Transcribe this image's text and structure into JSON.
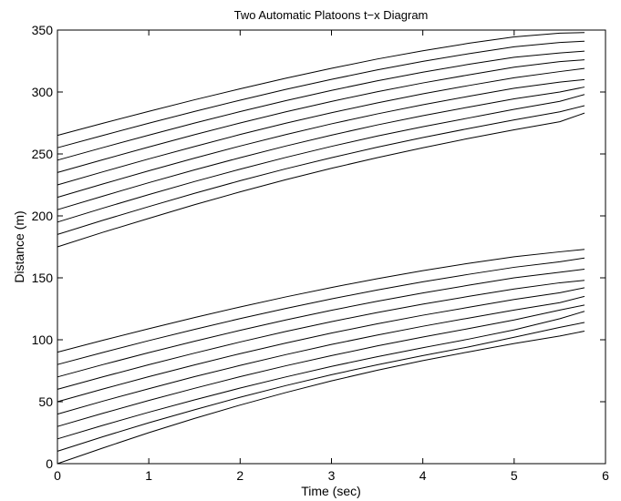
{
  "chart_data": {
    "type": "line",
    "title": "Two Automatic Platoons t−x Diagram",
    "xlabel": "Time (sec)",
    "ylabel": "Distance (m)",
    "xlim": [
      0,
      6
    ],
    "ylim": [
      0,
      350
    ],
    "xticks": [
      0,
      1,
      2,
      3,
      4,
      5,
      6
    ],
    "yticks": [
      0,
      50,
      100,
      150,
      200,
      250,
      300,
      350
    ],
    "grid": false,
    "legend": "none",
    "line_color": "#000000",
    "x": [
      0,
      0.5,
      1,
      1.5,
      2,
      2.5,
      3,
      3.5,
      4,
      4.5,
      5,
      5.5,
      5.77
    ],
    "series": [
      {
        "values": [
          0,
          12.7,
          25,
          36.5,
          47.3,
          57.4,
          66.8,
          75.4,
          83.2,
          90.2,
          97,
          103,
          107
        ]
      },
      {
        "values": [
          10,
          21.8,
          33,
          43.5,
          53.6,
          63,
          71.8,
          79.8,
          87.2,
          94.2,
          102,
          110,
          114
        ]
      },
      {
        "values": [
          20,
          31,
          41.5,
          51.5,
          61,
          70,
          78.5,
          86.3,
          93.6,
          100.5,
          108,
          117,
          123
        ]
      },
      {
        "values": [
          30,
          40.7,
          51,
          60.8,
          70.2,
          79,
          87.2,
          95,
          102.2,
          109,
          116,
          124,
          128
        ]
      },
      {
        "values": [
          40,
          50.5,
          60.5,
          70.2,
          79.3,
          88,
          96.2,
          103.8,
          110.9,
          117.5,
          124,
          130,
          135
        ]
      },
      {
        "values": [
          50,
          60.3,
          70.2,
          79.7,
          88.8,
          97.3,
          105.4,
          112.9,
          119.8,
          126.2,
          132.5,
          138,
          142
        ]
      },
      {
        "values": [
          60,
          70.1,
          79.9,
          89.2,
          98.2,
          106.7,
          114.6,
          122,
          128.8,
          135,
          141,
          146,
          148
        ]
      },
      {
        "values": [
          70,
          80,
          89.6,
          98.8,
          107.6,
          116,
          123.8,
          131.1,
          137.8,
          144,
          150,
          154.5,
          157
        ]
      },
      {
        "values": [
          80,
          89.8,
          99.3,
          108.4,
          117.1,
          125.3,
          133,
          140.2,
          146.8,
          152.8,
          158.5,
          163,
          166
        ]
      },
      {
        "values": [
          90,
          99.6,
          108.9,
          117.9,
          126.5,
          134.6,
          142.2,
          149.3,
          155.8,
          161.7,
          167,
          171,
          173
        ]
      },
      {
        "values": [
          175,
          186.8,
          198,
          209,
          219.4,
          229.2,
          238.4,
          247,
          255,
          262.5,
          269.5,
          276,
          283
        ]
      },
      {
        "values": [
          185,
          196.5,
          207.5,
          218.2,
          228.4,
          238,
          247,
          255.4,
          263.2,
          270.5,
          277.5,
          284,
          289
        ]
      },
      {
        "values": [
          195,
          206.3,
          217.2,
          227.7,
          237.7,
          247.2,
          256.1,
          264.4,
          272,
          279,
          286,
          292.5,
          298
        ]
      },
      {
        "values": [
          205,
          216,
          226.8,
          237.1,
          247,
          256.4,
          265.2,
          273.4,
          280.9,
          287.8,
          294.5,
          300,
          304
        ]
      },
      {
        "values": [
          215,
          225.8,
          236.4,
          246.6,
          256.4,
          265.6,
          274.3,
          282.3,
          289.7,
          296.5,
          303,
          308,
          310
        ]
      },
      {
        "values": [
          225,
          235.6,
          246,
          256,
          265.7,
          274.8,
          283.3,
          291.2,
          298.5,
          305.2,
          311.5,
          316.5,
          319
        ]
      },
      {
        "values": [
          235,
          245.4,
          255.6,
          265.5,
          275,
          284,
          292.4,
          300.2,
          307.3,
          313.8,
          320,
          324.5,
          326
        ]
      },
      {
        "values": [
          245,
          255.2,
          265.2,
          274.9,
          284.2,
          293,
          301.3,
          309,
          316,
          322.3,
          328,
          331.5,
          333
        ]
      },
      {
        "values": [
          255,
          265,
          274.8,
          284.3,
          293.4,
          302.1,
          310.2,
          317.8,
          324.7,
          330.9,
          336.5,
          340,
          341
        ]
      },
      {
        "values": [
          265,
          274.8,
          284.4,
          293.7,
          302.6,
          311.1,
          319.1,
          326.6,
          333.3,
          339.3,
          344.5,
          347.5,
          348
        ]
      }
    ]
  }
}
